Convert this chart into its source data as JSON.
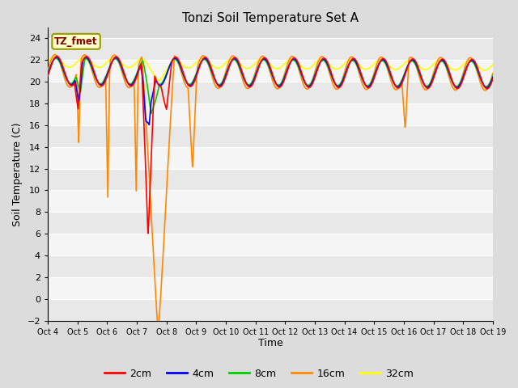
{
  "title": "Tonzi Soil Temperature Set A",
  "xlabel": "Time",
  "ylabel": "Soil Temperature (C)",
  "ylim": [
    -2,
    25
  ],
  "yticks": [
    -2,
    0,
    2,
    4,
    6,
    8,
    10,
    12,
    14,
    16,
    18,
    20,
    22,
    24
  ],
  "background_color": "#dcdcdc",
  "plot_bg_color": "#dcdcdc",
  "grid_color": "#ffffff",
  "legend_label": "TZ_fmet",
  "series_colors": {
    "2cm": "#ff0000",
    "4cm": "#0000ff",
    "8cm": "#00cc00",
    "16cm": "#ff8800",
    "32cm": "#ffff00"
  },
  "x_tick_labels": [
    "Oct 4",
    "Oct 5",
    "Oct 6",
    "Oct 7",
    "Oct 8",
    "Oct 9",
    "Oct 10",
    "Oct 11",
    "Oct 12",
    "Oct 13",
    "Oct 14",
    "Oct 15",
    "Oct 16",
    "Oct 17",
    "Oct 18",
    "Oct 19"
  ],
  "n_points": 721,
  "time_days": 15
}
